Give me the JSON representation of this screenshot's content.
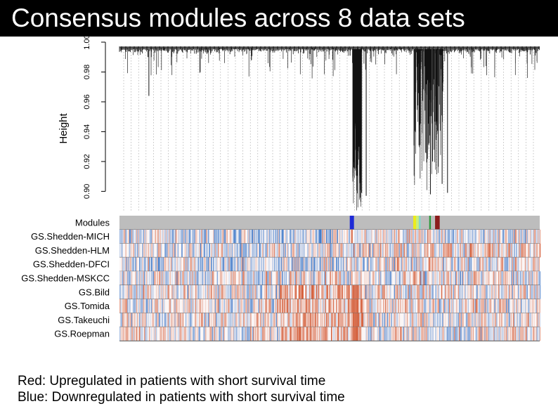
{
  "slide": {
    "title": "Consensus modules across 8 data sets",
    "legend": [
      "Red: Upregulated in patients with short survival time",
      "Blue: Downregulated in patients with short survival time"
    ]
  },
  "chart_data": {
    "type": "heatmap",
    "title": "",
    "dendrogram": {
      "ylabel": "Height",
      "yticks": [
        0.9,
        0.92,
        0.94,
        0.96,
        0.98,
        1.0
      ],
      "ylim": [
        0.895,
        1.0
      ],
      "notable_branch_heights": [
        0.964,
        0.99,
        0.99,
        0.925,
        0.899,
        0.893,
        0.897,
        0.898,
        0.905,
        0.899
      ]
    },
    "rows": [
      "Modules",
      "GS.Shedden-MICH",
      "GS.Shedden-HLM",
      "GS.Shedden-DFCI",
      "GS.Shedden-MSKCC",
      "GS.Bild",
      "GS.Tomida",
      "GS.Takeuchi",
      "GS.Roepman"
    ],
    "modules": [
      {
        "color": "#1f2bd6",
        "start": 0.548,
        "end": 0.558
      },
      {
        "color": "#ecec1c",
        "start": 0.699,
        "end": 0.706
      },
      {
        "color": "#c8f07a",
        "start": 0.706,
        "end": 0.712
      },
      {
        "color": "#7adcd0",
        "start": 0.713,
        "end": 0.716
      },
      {
        "color": "#2c9a3c",
        "start": 0.737,
        "end": 0.741
      },
      {
        "color": "#8b1c1c",
        "start": 0.751,
        "end": 0.762
      }
    ],
    "colors": {
      "up": "#d5603c",
      "down": "#3f79c9",
      "module_background": "#bdbdbd",
      "heatmap_background": "#fbf6f6"
    }
  }
}
